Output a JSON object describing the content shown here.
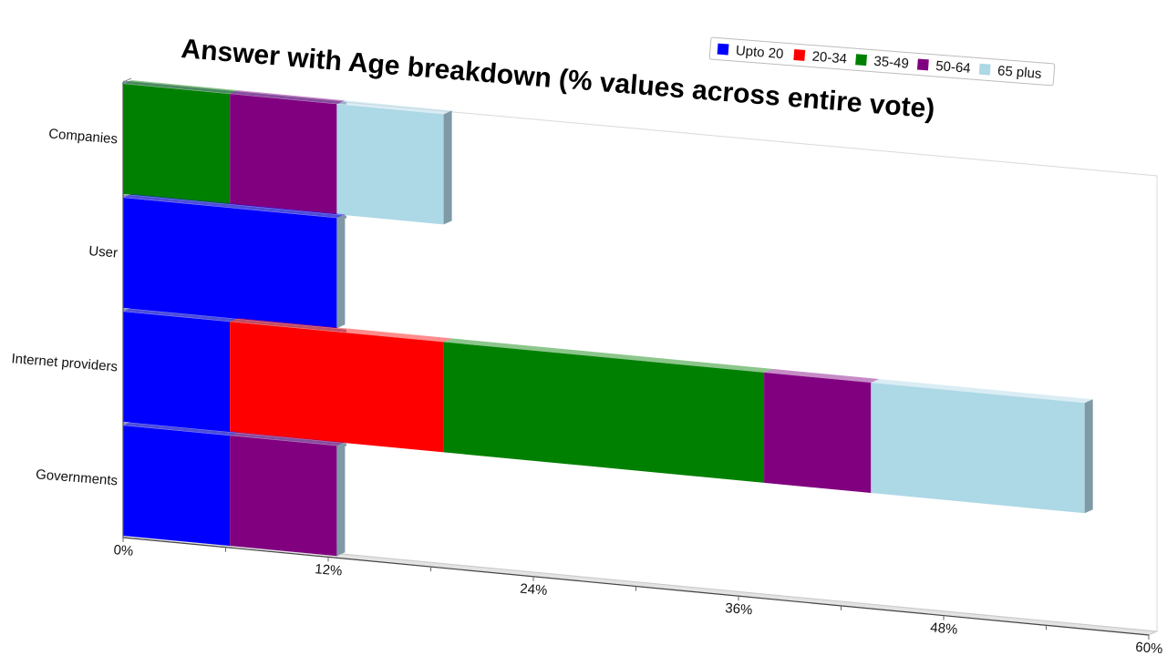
{
  "chart_data": {
    "type": "bar",
    "orientation": "horizontal",
    "stacked": true,
    "title": "Answer with Age breakdown (% values across entire vote)",
    "xlabel": "",
    "ylabel": "",
    "xlim": [
      0,
      60
    ],
    "x_ticks": [
      0,
      12,
      24,
      36,
      48,
      60
    ],
    "x_tick_labels": [
      "0%",
      "12%",
      "24%",
      "36%",
      "48%",
      "60%"
    ],
    "categories": [
      "Companies",
      "User",
      "Internet providers",
      "Governments"
    ],
    "series": [
      {
        "name": "Upto 20",
        "color": "#0000ff",
        "values": [
          0,
          12.5,
          6.25,
          6.25
        ]
      },
      {
        "name": "20-34",
        "color": "#ff0000",
        "values": [
          0,
          0,
          12.5,
          0
        ]
      },
      {
        "name": "35-49",
        "color": "#008000",
        "values": [
          6.25,
          0,
          18.75,
          0
        ]
      },
      {
        "name": "50-64",
        "color": "#800080",
        "values": [
          6.25,
          0,
          6.25,
          6.25
        ]
      },
      {
        "name": "65 plus",
        "color": "#add8e6",
        "values": [
          6.25,
          0,
          12.5,
          0
        ]
      }
    ],
    "legend": {
      "position": "top-right"
    },
    "grid": false
  }
}
